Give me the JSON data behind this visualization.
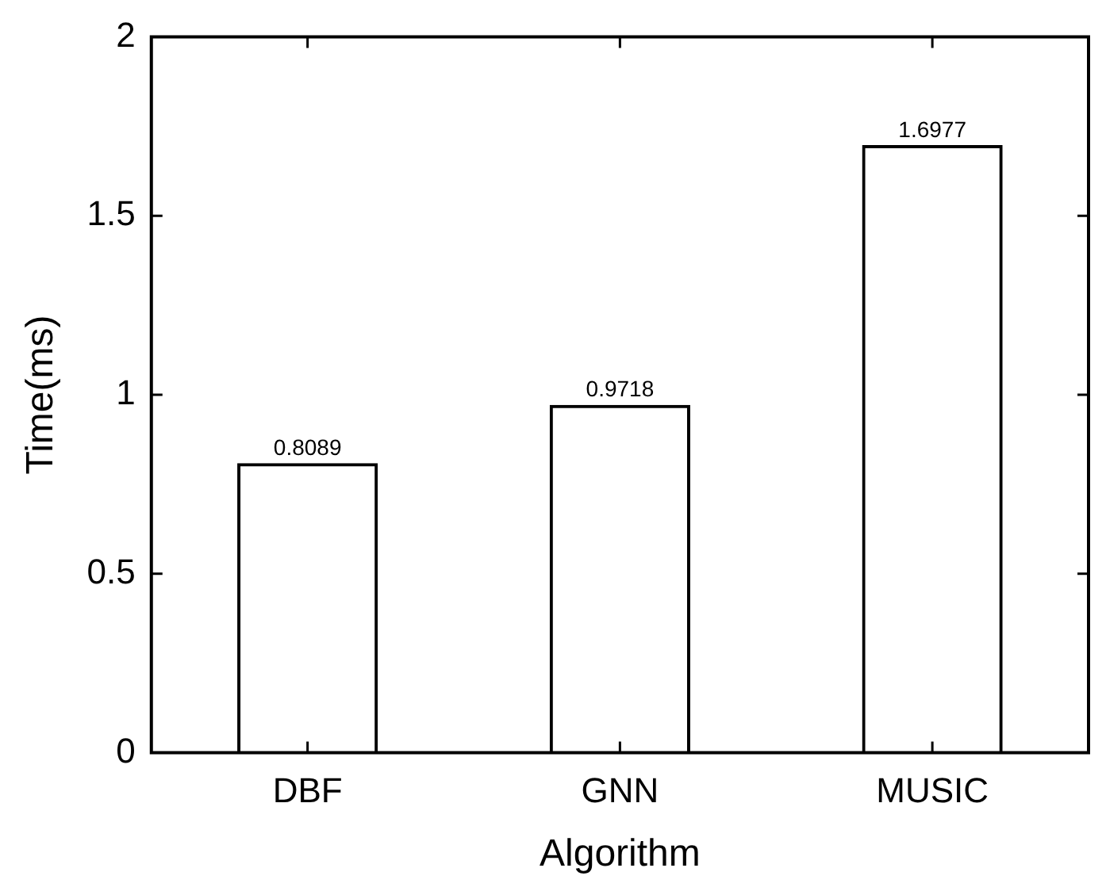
{
  "chart_data": {
    "type": "bar",
    "xlabel": "Algorithm",
    "ylabel": "Time(ms)",
    "categories": [
      "DBF",
      "GNN",
      "MUSIC"
    ],
    "values": [
      0.8089,
      0.9718,
      1.6977
    ],
    "color": "#000000",
    "ylim": [
      0,
      2
    ],
    "yticks": [
      0,
      0.5,
      1,
      1.5,
      2
    ],
    "data_labels": true,
    "grid": false,
    "legend": false
  }
}
